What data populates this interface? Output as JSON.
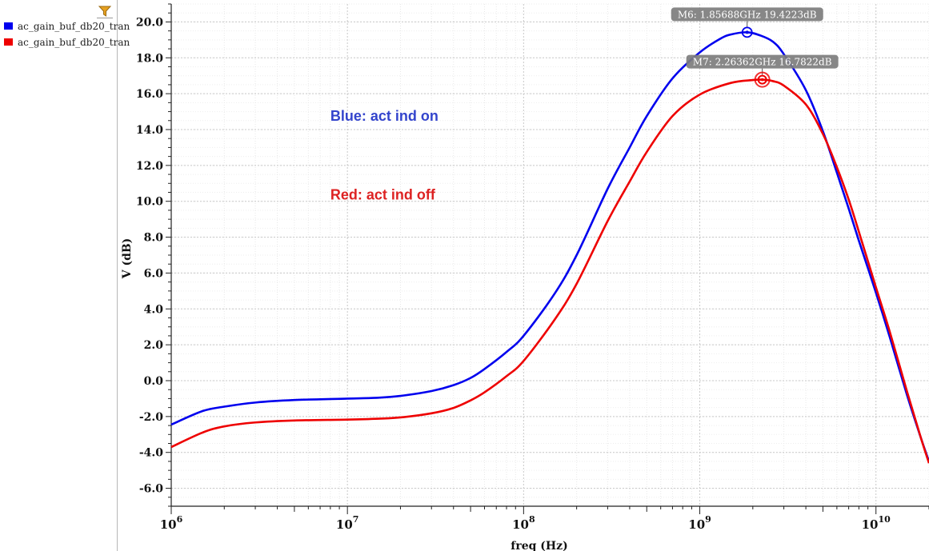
{
  "legend": {
    "items": [
      {
        "label": "ac_gain_buf_db20_tran",
        "color": "#0000ee"
      },
      {
        "label": "ac_gain_buf_db20_tran",
        "color": "#ee0000"
      }
    ],
    "filter_icon": "filter-funnel-icon"
  },
  "chart_data": {
    "type": "line",
    "xlabel": "freq (Hz)",
    "ylabel": "V (dB)",
    "xscale": "log",
    "xlim": [
      1000000.0,
      20000000000.0
    ],
    "ylim": [
      -7,
      21
    ],
    "grid": true,
    "x_tick_labels": [
      {
        "base": "10",
        "exp": "6"
      },
      {
        "base": "10",
        "exp": "7"
      },
      {
        "base": "10",
        "exp": "8"
      },
      {
        "base": "10",
        "exp": "9"
      },
      {
        "base": "10",
        "exp": "10"
      }
    ],
    "y_ticks": [
      -6,
      -4,
      -2,
      0,
      2,
      4,
      6,
      8,
      10,
      12,
      14,
      16,
      18,
      20
    ],
    "y_tick_labels": [
      "-6.0",
      "-4.0",
      "-2.0",
      "0.0",
      "2.0",
      "4.0",
      "6.0",
      "8.0",
      "10.0",
      "12.0",
      "14.0",
      "16.0",
      "18.0",
      "20.0"
    ],
    "series": [
      {
        "color": "#0000ee",
        "points": [
          [
            1000000.0,
            -2.45
          ],
          [
            1500000.0,
            -1.7
          ],
          [
            2000000.0,
            -1.45
          ],
          [
            3000000.0,
            -1.22
          ],
          [
            5000000.0,
            -1.08
          ],
          [
            10000000.0,
            -1.0
          ],
          [
            15000000.0,
            -0.95
          ],
          [
            20000000.0,
            -0.85
          ],
          [
            30000000.0,
            -0.58
          ],
          [
            40000000.0,
            -0.25
          ],
          [
            50000000.0,
            0.15
          ],
          [
            60000000.0,
            0.65
          ],
          [
            80000000.0,
            1.6
          ],
          [
            100000000.0,
            2.5
          ],
          [
            150000000.0,
            4.85
          ],
          [
            200000000.0,
            7.0
          ],
          [
            300000000.0,
            10.7
          ],
          [
            400000000.0,
            13.0
          ],
          [
            500000000.0,
            14.75
          ],
          [
            700000000.0,
            16.85
          ],
          [
            1000000000.0,
            18.3
          ],
          [
            1300000000.0,
            19.05
          ],
          [
            1500000000.0,
            19.3
          ],
          [
            1856880000.0,
            19.4223
          ],
          [
            2200000000.0,
            19.25
          ],
          [
            2600000000.0,
            18.9
          ],
          [
            3000000000.0,
            18.2
          ],
          [
            4000000000.0,
            16.2
          ],
          [
            5000000000.0,
            13.9
          ],
          [
            6000000000.0,
            11.6
          ],
          [
            7000000000.0,
            9.6
          ],
          [
            8000000000.0,
            7.8
          ],
          [
            10000000000.0,
            4.9
          ],
          [
            12000000000.0,
            2.4
          ],
          [
            15000000000.0,
            -0.8
          ],
          [
            18000000000.0,
            -3.2
          ],
          [
            20000000000.0,
            -4.5
          ]
        ]
      },
      {
        "color": "#ee0000",
        "points": [
          [
            1000000.0,
            -3.7
          ],
          [
            1500000.0,
            -2.9
          ],
          [
            2000000.0,
            -2.55
          ],
          [
            3000000.0,
            -2.33
          ],
          [
            5000000.0,
            -2.22
          ],
          [
            10000000.0,
            -2.17
          ],
          [
            15000000.0,
            -2.12
          ],
          [
            20000000.0,
            -2.05
          ],
          [
            30000000.0,
            -1.82
          ],
          [
            40000000.0,
            -1.52
          ],
          [
            50000000.0,
            -1.1
          ],
          [
            60000000.0,
            -0.65
          ],
          [
            80000000.0,
            0.25
          ],
          [
            100000000.0,
            1.1
          ],
          [
            150000000.0,
            3.4
          ],
          [
            200000000.0,
            5.4
          ],
          [
            300000000.0,
            8.9
          ],
          [
            400000000.0,
            11.1
          ],
          [
            500000000.0,
            12.75
          ],
          [
            700000000.0,
            14.75
          ],
          [
            1000000000.0,
            15.95
          ],
          [
            1500000000.0,
            16.6
          ],
          [
            2000000000.0,
            16.76
          ],
          [
            2263620000.0,
            16.7822
          ],
          [
            2600000000.0,
            16.7
          ],
          [
            3000000000.0,
            16.45
          ],
          [
            4000000000.0,
            15.4
          ],
          [
            5000000000.0,
            13.75
          ],
          [
            6000000000.0,
            11.9
          ],
          [
            7000000000.0,
            10.1
          ],
          [
            8000000000.0,
            8.3
          ],
          [
            10000000000.0,
            5.2
          ],
          [
            12000000000.0,
            2.7
          ],
          [
            15000000000.0,
            -0.6
          ],
          [
            18000000000.0,
            -3.2
          ],
          [
            20000000000.0,
            -4.6
          ]
        ]
      }
    ],
    "markers": [
      {
        "label": "M6: 1.85688GHz 19.4223dB",
        "x": 1856880000.0,
        "y": 19.4223,
        "color": "#0000ee",
        "style": "single-ring"
      },
      {
        "label": "M7: 2.26362GHz 16.7822dB",
        "x": 2263620000.0,
        "y": 16.7822,
        "color": "#ee0000",
        "style": "double-ring"
      }
    ],
    "annotations": [
      {
        "text": "Blue: act ind on",
        "color": "#3344cc",
        "x": 8000000.0,
        "y": 14.5
      },
      {
        "text": "Red: act ind off",
        "color": "#dd2222",
        "x": 8000000.0,
        "y": 10.1
      }
    ]
  }
}
